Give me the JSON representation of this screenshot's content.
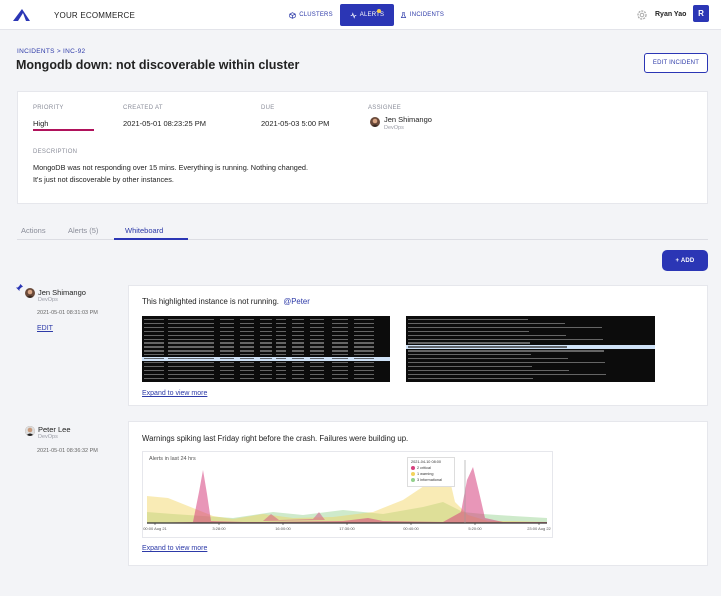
{
  "topbar": {
    "brand": "YOUR ECOMMERCE",
    "nav": [
      {
        "label": "CLUSTERS",
        "icon": "cube-icon"
      },
      {
        "label": "ALERTS",
        "icon": "pulse-icon"
      },
      {
        "label": "INCIDENTS",
        "icon": "flask-icon"
      }
    ],
    "user_name": "Ryan Yao",
    "avatar_initial": "R"
  },
  "header": {
    "breadcrumb": "INCIDENTS > INC-92",
    "title": "Mongodb down: not discoverable within cluster",
    "edit_button": "EDIT INCIDENT"
  },
  "details": {
    "priority_label": "PRIORITY",
    "priority_value": "High",
    "created_label": "CREATED AT",
    "created_value": "2021-05-01 08:23:25 PM",
    "due_label": "DUE",
    "due_value": "2021-05-03 5:00 PM",
    "assignee_label": "ASSIGNEE",
    "assignee_name": "Jen Shimango",
    "assignee_role": "DevOps",
    "description_label": "DESCRIPTION",
    "description_line1": "MongoDB was not responding over 15 mins. Everything is running. Nothing changed.",
    "description_line2": "It's just not discoverable by other instances.",
    "colors": {
      "priority_high": "#b0125b"
    }
  },
  "tabs": [
    "Actions",
    "Alerts (5)",
    "Whiteboard"
  ],
  "active_tab": "Whiteboard",
  "add_button": "+ ADD",
  "posts": [
    {
      "author": "Jen Shimango",
      "role": "DevOps",
      "time": "2021-05-01 08:31:03 PM",
      "edit_label": "EDIT",
      "pinned": true,
      "text": "This highlighted instance is not running.",
      "mention": "@Peter",
      "expand": "Expand to view more"
    },
    {
      "author": "Peter Lee",
      "role": "DevOps",
      "time": "2021-05-01 08:36:32 PM",
      "text": "Warnings spiking last Friday right before the crash. Failures were building up.",
      "expand": "Expand to view more"
    }
  ],
  "chart_data": {
    "type": "area",
    "title": "Alerts in last 24 hrs",
    "x_ticks": [
      "00:00 Aug 21",
      "3:28:00",
      "16:00:00",
      "17:30:00",
      "00:40:00",
      "5:20:00",
      "23:00 Aug 22"
    ],
    "tooltip": {
      "timestamp": "2021-04-10 08:00",
      "items": [
        "2 critical",
        "1 warning",
        "3 informational"
      ]
    },
    "series": [
      {
        "name": "critical",
        "color": "#d6407d"
      },
      {
        "name": "warning",
        "color": "#f2d35c"
      },
      {
        "name": "informational",
        "color": "#93d18c"
      }
    ]
  }
}
